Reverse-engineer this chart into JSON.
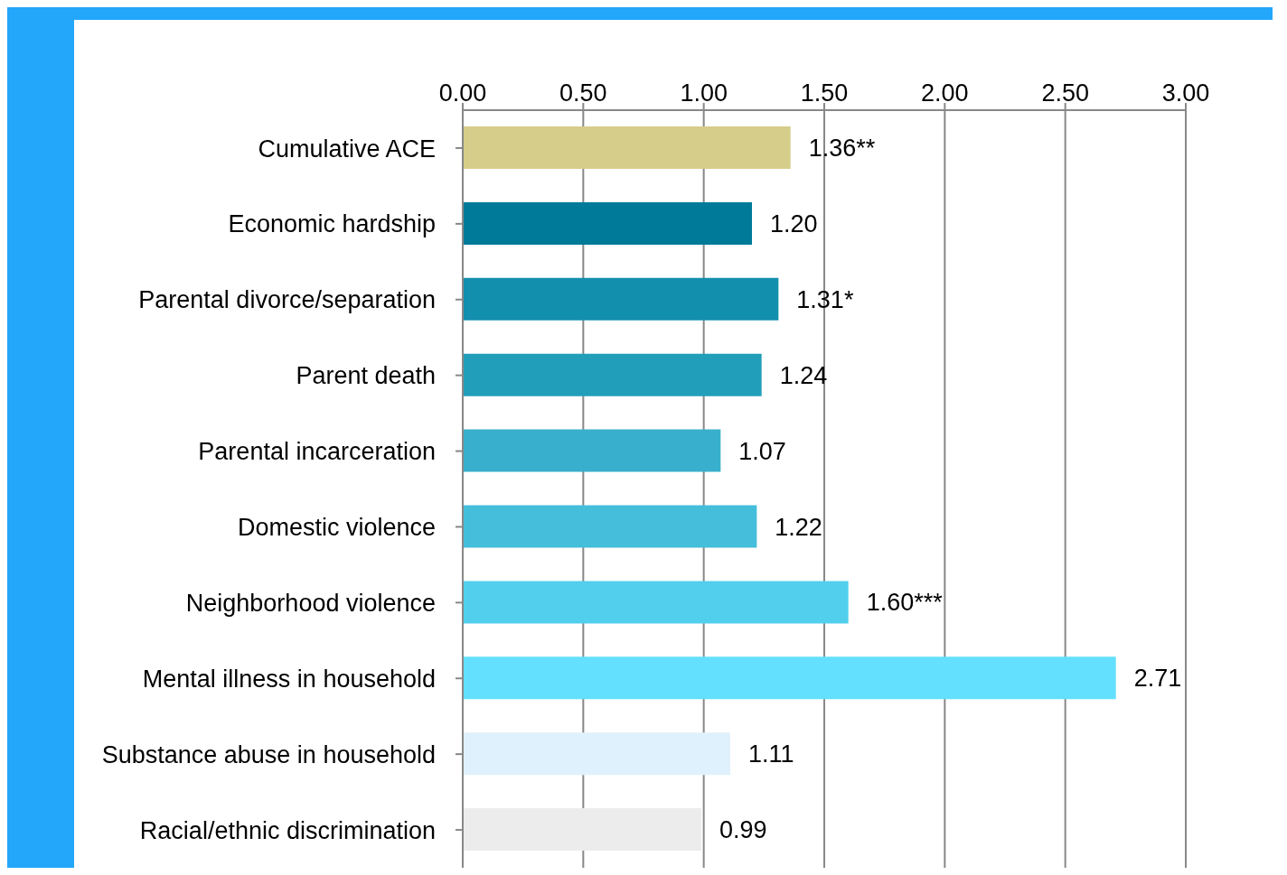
{
  "chart_data": {
    "type": "bar",
    "orientation": "horizontal",
    "categories": [
      "Cumulative ACE",
      "Economic hardship",
      "Parental divorce/separation",
      "Parent death",
      "Parental incarceration",
      "Domestic violence",
      "Neighborhood violence",
      "Mental illness in household",
      "Substance abuse in household",
      "Racial/ethnic discrimination"
    ],
    "values": [
      1.36,
      1.2,
      1.31,
      1.24,
      1.07,
      1.22,
      1.6,
      2.71,
      1.11,
      0.99
    ],
    "value_labels": [
      "1.36**",
      "1.20",
      "1.31*",
      "1.24",
      "1.07",
      "1.22",
      "1.60***",
      "2.71",
      "1.11",
      "0.99"
    ],
    "colors": [
      "#d6cd8a",
      "#007a99",
      "#138fae",
      "#219eba",
      "#38afcc",
      "#45bedb",
      "#52cfec",
      "#62e0fe",
      "#dff1fc",
      "#ececec"
    ],
    "xlim": [
      0,
      3
    ],
    "xticks": [
      {
        "value": 0,
        "label": "0.00"
      },
      {
        "value": 0.5,
        "label": "0.50"
      },
      {
        "value": 1,
        "label": "1.00"
      },
      {
        "value": 1.5,
        "label": "1.50"
      },
      {
        "value": 2,
        "label": "2.00"
      },
      {
        "value": 2.5,
        "label": "2.50"
      },
      {
        "value": 3,
        "label": "3.00"
      }
    ],
    "grid": "x"
  }
}
